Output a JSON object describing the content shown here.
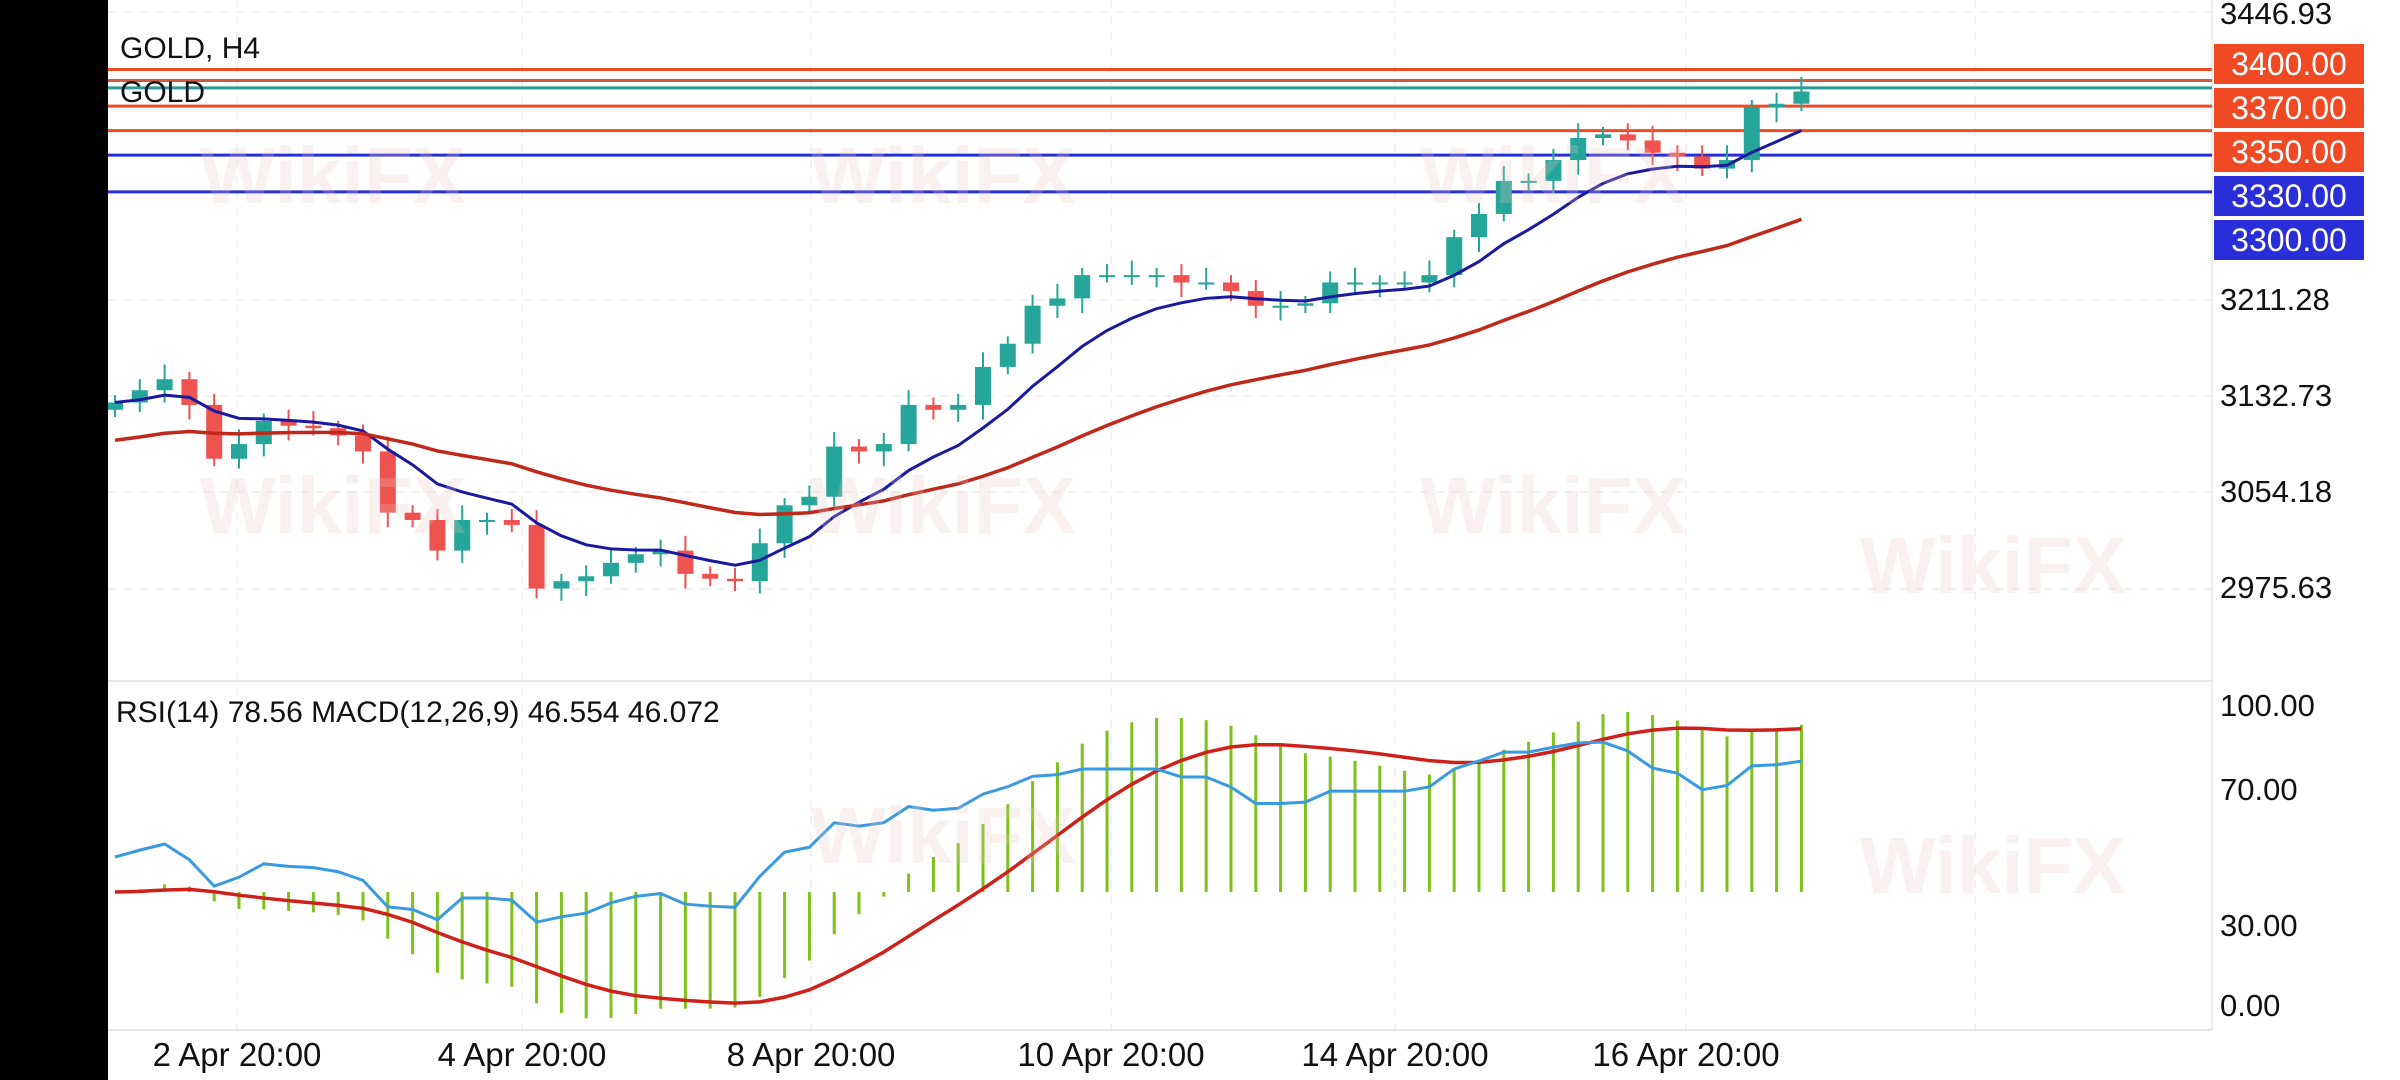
{
  "chart_data": {
    "type": "candlestick",
    "title": "GOLD, H4",
    "symbol": "GOLD",
    "ylim": [
      2975.63,
      3446.93
    ],
    "y_ticks": [
      "3446.93",
      "3211.28",
      "3132.73",
      "3054.18",
      "2975.63"
    ],
    "x_ticks": [
      "2 Apr 20:00",
      "4 Apr 20:00",
      "8 Apr 20:00",
      "10 Apr 20:00",
      "14 Apr 20:00",
      "16 Apr 20:00"
    ],
    "price_levels": [
      {
        "label": "3400.00",
        "value": 3400,
        "color": "#f04a24"
      },
      {
        "label": "3370.00",
        "value": 3370,
        "color": "#f04a24"
      },
      {
        "label": "3330.00",
        "value": 3330,
        "color": "#2a2ed8"
      },
      {
        "label": "3300.00",
        "value": 3300,
        "color": "#2a2ed8"
      },
      {
        "label": "3350.00",
        "value": 3350,
        "color": "#f04a24"
      }
    ],
    "extra_lines": [
      {
        "value": 3391,
        "color": "#d05a40"
      },
      {
        "value": 3385,
        "color": "#2a9a9a"
      }
    ],
    "closes": [
      3128,
      3138,
      3147,
      3126,
      3082,
      3094,
      3113,
      3109,
      3107,
      3101,
      3088,
      3038,
      3032,
      3007,
      3032,
      3032,
      3028,
      2976,
      2982,
      2986,
      2997,
      3004,
      3007,
      2988,
      2984,
      2982,
      3013,
      3044,
      3051,
      3092,
      3088,
      3094,
      3126,
      3122,
      3126,
      3157,
      3176,
      3207,
      3213,
      3232,
      3232,
      3232,
      3232,
      3226,
      3226,
      3219,
      3207,
      3207,
      3209,
      3226,
      3226,
      3226,
      3226,
      3232,
      3263,
      3282,
      3309,
      3309,
      3326,
      3344,
      3347,
      3342,
      3332,
      3329,
      3319,
      3326,
      3369,
      3372,
      3382
    ],
    "indicator_label": "RSI(14) 78.56 MACD(12,26,9) 46.554 46.072",
    "indicator_ticks": [
      "100.00",
      "70.00",
      "30.00",
      "0.00"
    ],
    "colors": {
      "up": "#26a69a",
      "down": "#ef5350",
      "fast_ma": "#1a1aa0",
      "slow_ma": "#c0281a",
      "rsi": "#3a9ae0",
      "macd_hist": "#7cc21a",
      "macd_signal": "#d0201a"
    }
  },
  "watermark": "WikiFX"
}
